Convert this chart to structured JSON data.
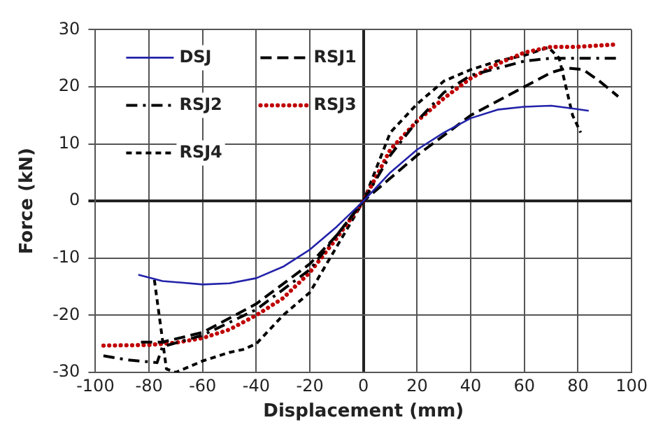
{
  "chart_data": {
    "type": "line",
    "xlabel": "Displacement (mm)",
    "ylabel": "Force (kN)",
    "xlim": [
      -100,
      100
    ],
    "ylim": [
      -30,
      30
    ],
    "xticks": [
      -100,
      -80,
      -60,
      -40,
      -20,
      0,
      20,
      40,
      60,
      80,
      100
    ],
    "yticks": [
      -30,
      -20,
      -10,
      0,
      10,
      20,
      30
    ],
    "grid": true,
    "legend": "top left",
    "marker": "none",
    "series": [
      {
        "name": "DSJ",
        "color": "#2222aa",
        "line_style": "solid",
        "x": [
          -84,
          -75,
          -60,
          -50,
          -40,
          -30,
          -20,
          -10,
          0,
          10,
          20,
          30,
          40,
          50,
          60,
          70,
          78,
          84
        ],
        "values": [
          -12.9,
          -14,
          -14.6,
          -14.4,
          -13.5,
          -11.5,
          -8.5,
          -4.5,
          0,
          5,
          9,
          12,
          14.5,
          16,
          16.5,
          16.7,
          16.2,
          15.8
        ]
      },
      {
        "name": "RSJ1",
        "color": "#000000",
        "line_style": "dashed",
        "x": [
          -83,
          -75,
          -60,
          -40,
          -20,
          -10,
          0,
          10,
          20,
          40,
          60,
          70,
          76,
          82,
          88,
          95
        ],
        "values": [
          -24.7,
          -24.7,
          -23,
          -18,
          -11,
          -6,
          0,
          4,
          8,
          15,
          20,
          22.5,
          23.3,
          23,
          21,
          18.3
        ]
      },
      {
        "name": "RSJ2",
        "color": "#000000",
        "line_style": "dashdot",
        "x": [
          -97,
          -88,
          -77,
          -75,
          -60,
          -40,
          -20,
          -10,
          0,
          10,
          20,
          30,
          40,
          60,
          70,
          80,
          95
        ],
        "values": [
          -27.1,
          -27.8,
          -28.3,
          -25.5,
          -23.5,
          -19,
          -12,
          -6,
          0,
          8,
          14,
          19,
          22,
          24.5,
          25,
          25,
          25
        ]
      },
      {
        "name": "RSJ3",
        "color": "#c00000",
        "line_style": "dotted",
        "x": [
          -97,
          -80,
          -70,
          -60,
          -50,
          -40,
          -30,
          -20,
          -10,
          0,
          10,
          20,
          30,
          40,
          50,
          60,
          70,
          80,
          94
        ],
        "values": [
          -25.3,
          -25.2,
          -24.8,
          -24,
          -22.5,
          -20,
          -17,
          -12.5,
          -6.5,
          0,
          9,
          14,
          18,
          21.5,
          24,
          26,
          27,
          27,
          27.4
        ]
      },
      {
        "name": "RSJ4",
        "color": "#000000",
        "line_style": "dashed",
        "x": [
          -78,
          -73.5,
          -70,
          -60,
          -50,
          -45,
          -40,
          -30,
          -20,
          -10,
          0,
          10,
          20,
          30,
          40,
          50,
          60,
          69,
          73,
          78,
          81
        ],
        "values": [
          -13.8,
          -29.4,
          -30,
          -28,
          -26.5,
          -26,
          -25,
          -20,
          -16,
          -8,
          0,
          12,
          17,
          21,
          23,
          24.5,
          25.5,
          26.9,
          25,
          15,
          12
        ]
      }
    ]
  }
}
